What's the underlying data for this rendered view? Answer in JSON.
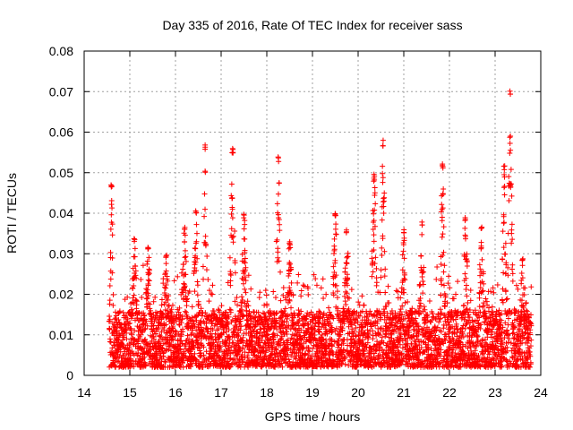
{
  "chart_data": {
    "type": "scatter",
    "title": "Day 335 of 2016, Rate Of TEC Index for receiver sass",
    "xlabel": "GPS time / hours",
    "ylabel": "ROTI / TECUs",
    "xlim": [
      14,
      24
    ],
    "ylim": [
      0,
      0.08
    ],
    "xticks": [
      "14",
      "15",
      "16",
      "17",
      "18",
      "19",
      "20",
      "21",
      "22",
      "23",
      "24"
    ],
    "yticks": [
      "0",
      "0.01",
      "0.02",
      "0.03",
      "0.04",
      "0.05",
      "0.06",
      "0.07",
      "0.08"
    ],
    "grid": true,
    "marker": "+",
    "color": "#ff0000",
    "sampling": {
      "start": 14.55,
      "end": 23.8,
      "step": 0.01,
      "seed": 335
    },
    "noise_floor": [
      0.002,
      0.016
    ],
    "bursts": [
      {
        "x": 14.6,
        "peak": 0.048,
        "width": 0.03
      },
      {
        "x": 15.1,
        "peak": 0.034,
        "width": 0.05
      },
      {
        "x": 15.4,
        "peak": 0.032,
        "width": 0.05
      },
      {
        "x": 15.8,
        "peak": 0.03,
        "width": 0.05
      },
      {
        "x": 16.2,
        "peak": 0.037,
        "width": 0.05
      },
      {
        "x": 16.45,
        "peak": 0.041,
        "width": 0.05
      },
      {
        "x": 16.65,
        "peak": 0.057,
        "width": 0.04
      },
      {
        "x": 17.25,
        "peak": 0.056,
        "width": 0.05
      },
      {
        "x": 17.5,
        "peak": 0.04,
        "width": 0.05
      },
      {
        "x": 18.25,
        "peak": 0.054,
        "width": 0.04
      },
      {
        "x": 18.5,
        "peak": 0.033,
        "width": 0.05
      },
      {
        "x": 19.5,
        "peak": 0.04,
        "width": 0.05
      },
      {
        "x": 19.75,
        "peak": 0.036,
        "width": 0.05
      },
      {
        "x": 20.35,
        "peak": 0.05,
        "width": 0.05
      },
      {
        "x": 20.55,
        "peak": 0.058,
        "width": 0.04
      },
      {
        "x": 21.0,
        "peak": 0.036,
        "width": 0.05
      },
      {
        "x": 21.4,
        "peak": 0.038,
        "width": 0.05
      },
      {
        "x": 21.85,
        "peak": 0.053,
        "width": 0.04
      },
      {
        "x": 22.35,
        "peak": 0.039,
        "width": 0.05
      },
      {
        "x": 22.7,
        "peak": 0.037,
        "width": 0.05
      },
      {
        "x": 23.2,
        "peak": 0.052,
        "width": 0.04
      },
      {
        "x": 23.33,
        "peak": 0.071,
        "width": 0.04
      },
      {
        "x": 23.6,
        "peak": 0.029,
        "width": 0.05
      }
    ]
  }
}
